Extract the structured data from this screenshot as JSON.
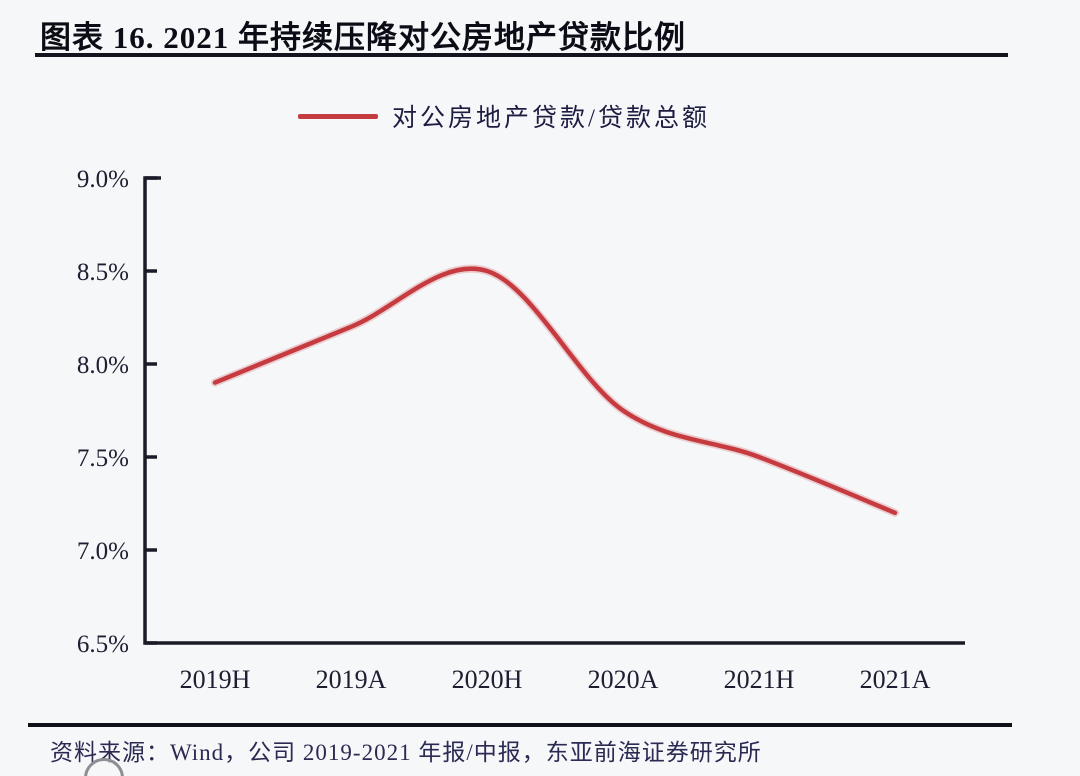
{
  "header": {
    "title": "图表 16. 2021 年持续压降对公房地产贷款比例"
  },
  "chart_data": {
    "type": "line",
    "categories": [
      "2019H",
      "2019A",
      "2020H",
      "2020A",
      "2021H",
      "2021A"
    ],
    "series": [
      {
        "name": "对公房地产贷款/贷款总额",
        "values": [
          7.9,
          8.2,
          8.5,
          7.75,
          7.5,
          7.2
        ],
        "color": "#c53b40"
      }
    ],
    "title": "图表 16. 2021 年持续压降对公房地产贷款比例",
    "xlabel": "",
    "ylabel": "",
    "ylim": [
      6.5,
      9.0
    ],
    "yticks": [
      9.0,
      8.5,
      8.0,
      7.5,
      7.0,
      6.5
    ],
    "ytick_labels": [
      "9.0%",
      "8.5%",
      "8.0%",
      "7.5%",
      "7.0%",
      "6.5%"
    ],
    "grid": false,
    "legend_position": "top-center",
    "axis_color": "#1a1a28"
  },
  "footer": {
    "source": "资料来源：Wind，公司 2019-2021 年报/中报，东亚前海证券研究所"
  }
}
